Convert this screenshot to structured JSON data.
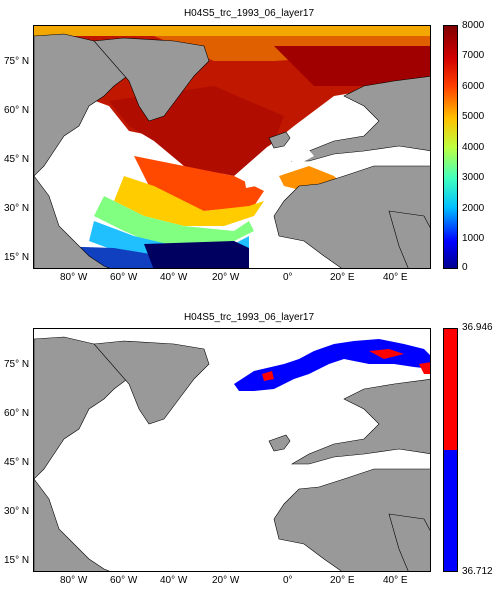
{
  "panels": [
    {
      "title": "H04S5_trc_1993_06_layer17",
      "colorbar": {
        "type": "continuous",
        "ticks": [
          "8000",
          "7000",
          "6000",
          "5000",
          "4000",
          "3000",
          "2000",
          "1000",
          "0"
        ]
      }
    },
    {
      "title": "H04S5_trc_1993_06_layer17",
      "colorbar": {
        "type": "binary",
        "top_label": "36.946",
        "bottom_label": "36.712",
        "colors": [
          "#ff0000",
          "#0000ff"
        ]
      }
    }
  ],
  "axes": {
    "lat_ticks": [
      "75° N",
      "60° N",
      "45° N",
      "30° N",
      "15° N"
    ],
    "lon_ticks": [
      "80° W",
      "60° W",
      "40° W",
      "20° W",
      "0°",
      "20° E",
      "40° E"
    ]
  },
  "colors": {
    "land": "#999999",
    "ocean_missing": "#ffffff"
  }
}
